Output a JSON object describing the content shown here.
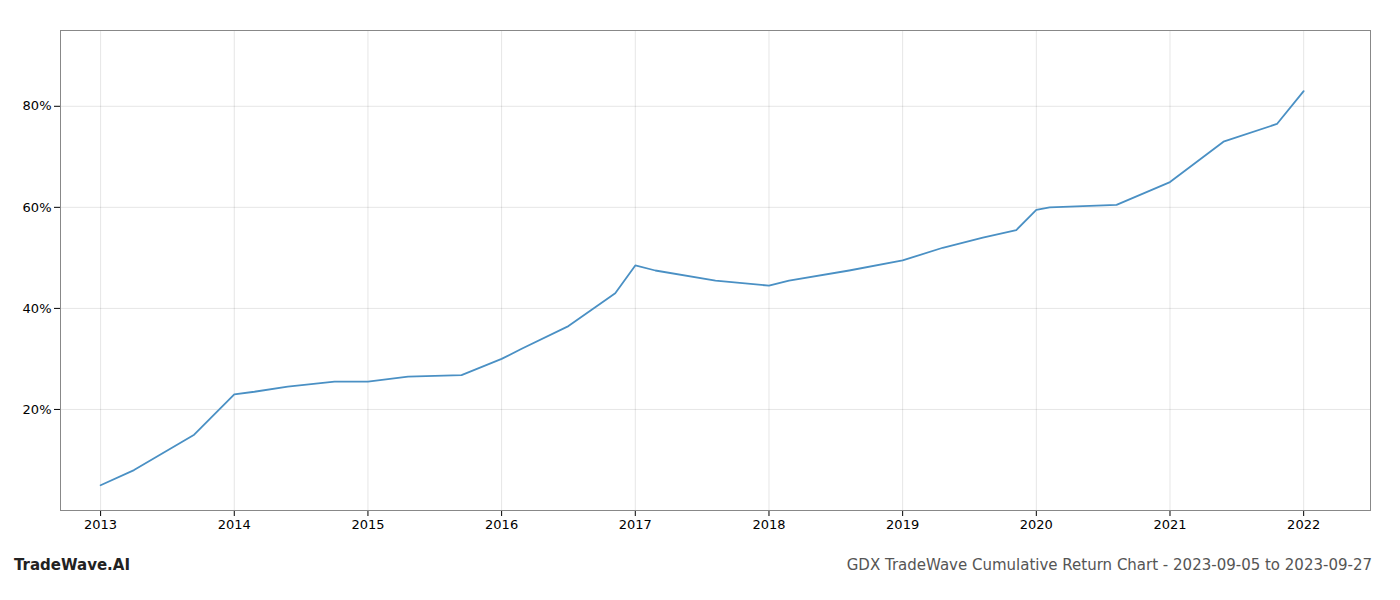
{
  "chart_data": {
    "type": "line",
    "title": "GDX TradeWave Cumulative Return Chart - 2023-09-05 to 2023-09-27",
    "annotations": [
      "TradeWave.AI"
    ],
    "x": [
      2013.0,
      2013.25,
      2013.7,
      2014.0,
      2014.15,
      2014.4,
      2014.75,
      2015.0,
      2015.3,
      2015.7,
      2016.0,
      2016.15,
      2016.5,
      2016.85,
      2017.0,
      2017.15,
      2017.6,
      2018.0,
      2018.15,
      2018.6,
      2019.0,
      2019.3,
      2019.6,
      2019.85,
      2020.0,
      2020.1,
      2020.6,
      2021.0,
      2021.4,
      2021.8,
      2022.0
    ],
    "values": [
      5.0,
      8.0,
      15.0,
      23.0,
      23.5,
      24.5,
      25.5,
      25.5,
      26.5,
      26.8,
      30.0,
      32.0,
      36.5,
      43.0,
      48.5,
      47.5,
      45.5,
      44.5,
      45.5,
      47.5,
      49.5,
      52.0,
      54.0,
      55.5,
      59.5,
      60.0,
      60.5,
      65.0,
      73.0,
      76.5,
      83.0
    ],
    "color": "#4a90c4",
    "xlim": [
      2012.7,
      2022.5
    ],
    "xticks": [
      2013,
      2014,
      2015,
      2016,
      2017,
      2018,
      2019,
      2020,
      2021,
      2022
    ],
    "ylim": [
      0,
      95
    ],
    "yticks": [
      {
        "value": 20,
        "label": "20%"
      },
      {
        "value": 40,
        "label": "40%"
      },
      {
        "value": 60,
        "label": "60%"
      },
      {
        "value": 80,
        "label": "80%"
      }
    ],
    "grid": true
  }
}
